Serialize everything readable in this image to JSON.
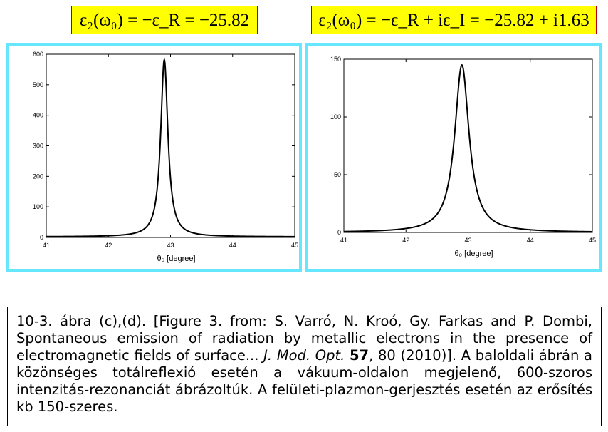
{
  "formulas": {
    "left": "ε₂(ω₀) = −ε_R = −25.82",
    "right": "ε₂(ω₀) = −ε_R + iε_I = −25.82 + i1.63"
  },
  "formula_colors": {
    "background": "#ffff00",
    "border": "#b40000"
  },
  "panel_border_color": "#66e6ff",
  "chart_data": [
    {
      "type": "line",
      "title": "",
      "xlabel": "θ₀ [degree]",
      "ylabel": "",
      "xlim": [
        41,
        45
      ],
      "ylim": [
        0,
        600
      ],
      "xticks": [
        41,
        42,
        43,
        44,
        45
      ],
      "yticks": [
        0,
        100,
        200,
        300,
        400,
        500,
        600
      ],
      "grid": false,
      "peak": {
        "x": 42.9,
        "y": 582,
        "gamma": 0.07
      },
      "baseline": 2
    },
    {
      "type": "line",
      "title": "",
      "xlabel": "θ₀ [degree]",
      "ylabel": "",
      "xlim": [
        41,
        45
      ],
      "ylim": [
        0,
        150
      ],
      "xticks": [
        41,
        42,
        43,
        44,
        45
      ],
      "yticks": [
        0,
        50,
        100,
        150
      ],
      "grid": false,
      "peak": {
        "x": 42.9,
        "y": 145,
        "gamma": 0.14
      },
      "baseline": 0
    }
  ],
  "caption": {
    "part1": "10-3. ábra (c),(d). [Figure 3. from: S. Varró, N. Kroó, Gy. Farkas and P. Dombi, Spontaneous emission of radiation by metallic electrons in the presence of electromagnetic fields of surface... ",
    "journal": "J. Mod. Opt.",
    "volume": "57",
    "part2": ", 80 (2010)]. A baloldali ábrán a közönséges totálreflexió esetén a vákuum-oldalon megjelenő, 600-szoros intenzitás-rezonanciát ábrázoltúk. A felületi-plazmon-gerjesztés esetén az erősítés kb 150-szeres."
  }
}
